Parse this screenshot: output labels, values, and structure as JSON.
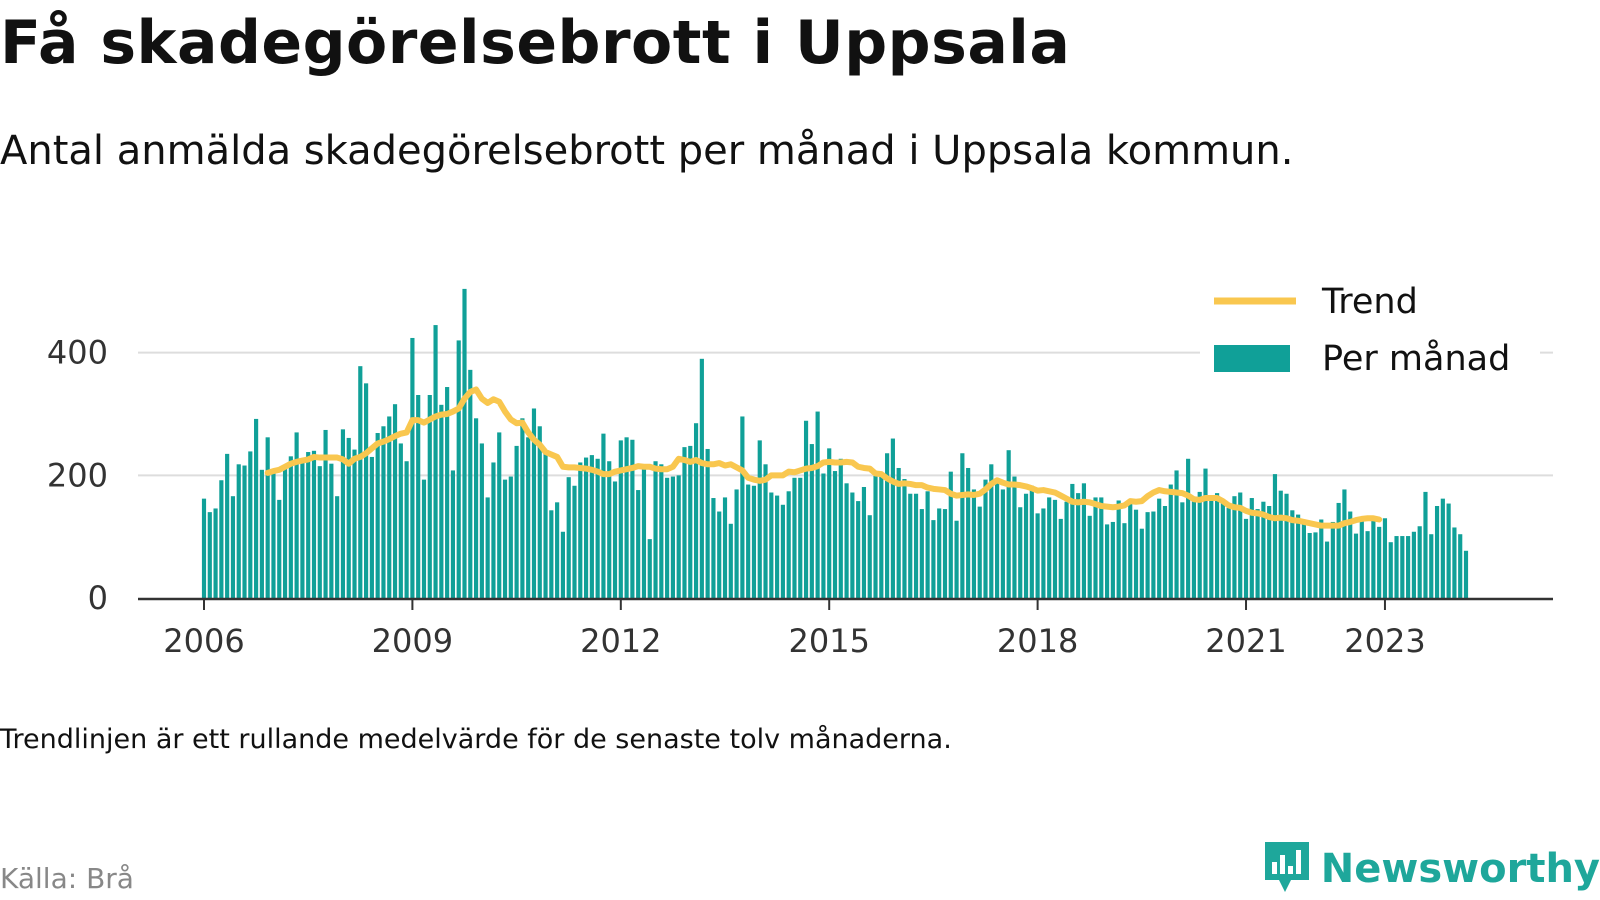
{
  "header": {
    "title": "Få skadegörelsebrott i Uppsala",
    "subtitle": "Antal anmälda skadegörelsebrott per månad i Uppsala kommun."
  },
  "footer": {
    "note": "Trendlinjen är ett rullande medelvärde för de senaste tolv månaderna.",
    "source": "Källa: Brå",
    "brand": "Newsworthy"
  },
  "colors": {
    "bars": "#10a098",
    "trend": "#f9c74f",
    "grid": "#dddddd",
    "axis": "#333333",
    "brand": "#1ea79b"
  },
  "chart_data": {
    "type": "bar",
    "x_start": "2006-01",
    "x_ticks": [
      "2006",
      "2009",
      "2012",
      "2015",
      "2018",
      "2021",
      "2023"
    ],
    "y_ticks": [
      "0",
      "200",
      "400"
    ],
    "ylim": [
      0,
      520
    ],
    "grid": true,
    "legend_position": "top-right",
    "series": [
      {
        "name": "Per månad",
        "type": "bar",
        "values": [
          162,
          140,
          146,
          192,
          235,
          166,
          218,
          216,
          239,
          292,
          209,
          262,
          205,
          160,
          215,
          231,
          270,
          221,
          238,
          240,
          215,
          274,
          219,
          166,
          275,
          261,
          242,
          378,
          350,
          230,
          269,
          280,
          296,
          316,
          252,
          223,
          424,
          331,
          193,
          331,
          445,
          315,
          344,
          208,
          420,
          504,
          372,
          293,
          252,
          164,
          221,
          270,
          193,
          198,
          248,
          293,
          262,
          309,
          280,
          238,
          143,
          156,
          108,
          197,
          183,
          221,
          229,
          233,
          227,
          268,
          223,
          190,
          257,
          262,
          258,
          176,
          217,
          96,
          223,
          218,
          196,
          198,
          200,
          246,
          248,
          285,
          390,
          243,
          163,
          141,
          164,
          121,
          177,
          296,
          185,
          183,
          257,
          218,
          172,
          167,
          152,
          174,
          196,
          196,
          289,
          251,
          304,
          203,
          244,
          207,
          227,
          187,
          172,
          158,
          181,
          135,
          199,
          202,
          236,
          260,
          212,
          194,
          170,
          170,
          145,
          174,
          127,
          146,
          145,
          206,
          126,
          236,
          212,
          177,
          149,
          193,
          218,
          187,
          177,
          241,
          198,
          148,
          170,
          183,
          138,
          146,
          164,
          160,
          129,
          157,
          186,
          171,
          187,
          134,
          164,
          164,
          120,
          124,
          159,
          122,
          157,
          144,
          113,
          140,
          141,
          162,
          150,
          185,
          208,
          156,
          227,
          165,
          173,
          211,
          166,
          171,
          156,
          147,
          166,
          172,
          129,
          163,
          145,
          157,
          150,
          202,
          175,
          170,
          143,
          136,
          121,
          106,
          107,
          128,
          92,
          124,
          155,
          177,
          141,
          105,
          132,
          109,
          132,
          116,
          130,
          91,
          101,
          101,
          101,
          108,
          117,
          173,
          104,
          150,
          162,
          154,
          115,
          104,
          77
        ],
        "ylabel": ""
      },
      {
        "name": "Trend",
        "type": "line",
        "values": [
          null,
          null,
          null,
          null,
          null,
          null,
          null,
          null,
          null,
          null,
          null,
          204,
          207,
          209,
          214,
          219,
          222,
          224,
          226,
          230,
          229,
          229,
          229,
          229,
          226,
          219,
          227,
          230,
          236,
          244,
          252,
          255,
          259,
          264,
          268,
          270,
          290,
          290,
          286,
          291,
          296,
          299,
          300,
          304,
          309,
          325,
          336,
          340,
          325,
          318,
          324,
          320,
          304,
          291,
          285,
          286,
          270,
          258,
          250,
          238,
          234,
          230,
          214,
          213,
          213,
          212,
          211,
          209,
          206,
          202,
          202,
          206,
          208,
          210,
          212,
          215,
          214,
          214,
          211,
          210,
          210,
          214,
          227,
          225,
          222,
          225,
          220,
          218,
          218,
          220,
          216,
          218,
          213,
          208,
          196,
          193,
          191,
          193,
          200,
          200,
          200,
          206,
          205,
          208,
          211,
          212,
          215,
          221,
          222,
          221,
          221,
          222,
          221,
          214,
          212,
          211,
          203,
          202,
          195,
          190,
          186,
          187,
          186,
          184,
          184,
          180,
          178,
          177,
          176,
          170,
          167,
          168,
          169,
          168,
          170,
          177,
          186,
          192,
          188,
          185,
          185,
          184,
          182,
          179,
          175,
          176,
          174,
          172,
          167,
          162,
          157,
          156,
          157,
          156,
          153,
          150,
          149,
          148,
          149,
          151,
          158,
          157,
          158,
          166,
          172,
          176,
          174,
          173,
          172,
          171,
          167,
          161,
          160,
          163,
          163,
          163,
          158,
          151,
          148,
          147,
          142,
          139,
          138,
          136,
          132,
          130,
          131,
          130,
          127,
          126,
          124,
          122,
          120,
          118,
          118,
          118,
          118,
          122,
          124,
          127,
          129,
          130,
          130,
          128
        ]
      }
    ]
  }
}
